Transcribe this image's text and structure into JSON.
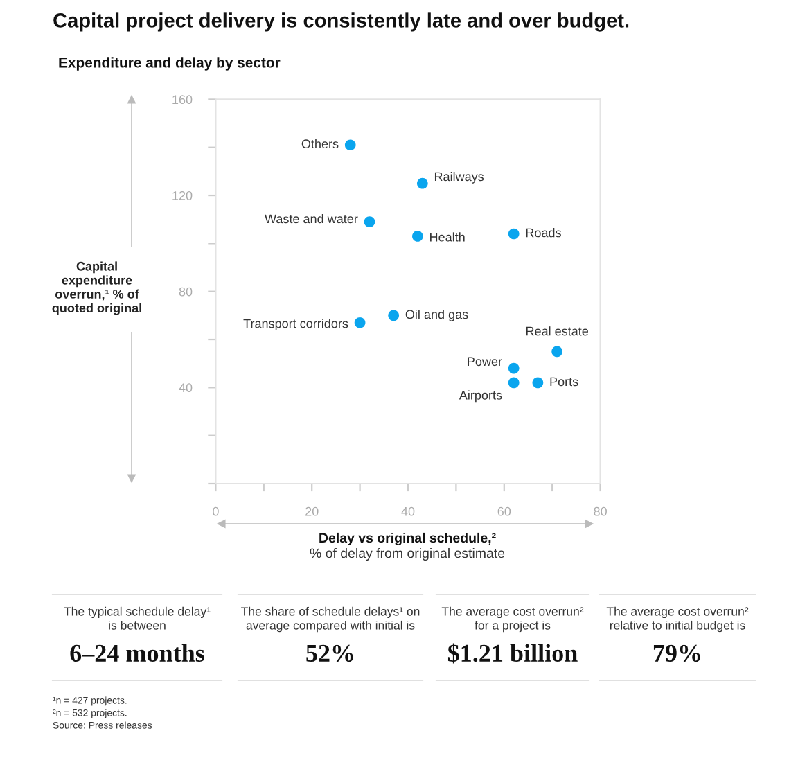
{
  "chart_data": [
    {
      "type": "scatter",
      "title": "Capital project delivery is consistently late and over budget.",
      "subtitle": "Expenditure and delay by sector",
      "xlabel": "Delay vs original schedule,²\n% of delay from original estimate",
      "ylabel": "Capital\nexpenditure\noverrun,¹ % of\nquoted original",
      "x": [
        28,
        43,
        32,
        42,
        62,
        30,
        37,
        71,
        62,
        62,
        67
      ],
      "series": [
        {
          "color": "#0aa5ee",
          "values": [
            141,
            125,
            109,
            103,
            104,
            67,
            70,
            55,
            48,
            42,
            42
          ]
        }
      ],
      "annotations": [
        {
          "text": "Others",
          "x": 28,
          "y": 141
        },
        {
          "text": "Railways",
          "x": 43,
          "y": 125
        },
        {
          "text": "Waste and water",
          "x": 32,
          "y": 109
        },
        {
          "text": "Health",
          "x": 42,
          "y": 103
        },
        {
          "text": "Roads",
          "x": 62,
          "y": 104
        },
        {
          "text": "Transport corridors",
          "x": 30,
          "y": 67
        },
        {
          "text": "Oil and gas",
          "x": 37,
          "y": 70
        },
        {
          "text": "Real estate",
          "x": 71,
          "y": 55
        },
        {
          "text": "Power",
          "x": 62,
          "y": 48
        },
        {
          "text": "Airports",
          "x": 62,
          "y": 42
        },
        {
          "text": "Ports",
          "x": 67,
          "y": 42
        }
      ],
      "xlim": [
        0,
        80
      ],
      "ylim": [
        0,
        160
      ],
      "xticks": [
        0,
        {
          "value": 10,
          "label": null
        },
        20,
        {
          "value": 30,
          "label": null
        },
        40,
        {
          "value": 50,
          "label": null
        },
        60,
        {
          "value": 70,
          "label": null
        },
        80
      ],
      "yticks": [
        {
          "value": 0,
          "label": null
        },
        {
          "value": 20,
          "label": null
        },
        40,
        {
          "value": 60,
          "label": null
        },
        80,
        {
          "value": 100,
          "label": null
        },
        120,
        {
          "value": 140,
          "label": null
        },
        160
      ],
      "grid": false,
      "legend": false,
      "marker": "circle"
    },
    {
      "type": "other",
      "annotations": [
        "The typical schedule delay¹\nis between",
        "6–24 months",
        "The share of schedule delays¹ on\naverage compared with initial is",
        "52%",
        "The average cost overrun²\nfor a project is",
        "$1.21 billion",
        "The average cost overrun²\nrelative to initial budget is",
        "79%",
        "¹n = 427 projects.",
        "²n = 532 projects.",
        "Source: Press releases"
      ]
    }
  ]
}
